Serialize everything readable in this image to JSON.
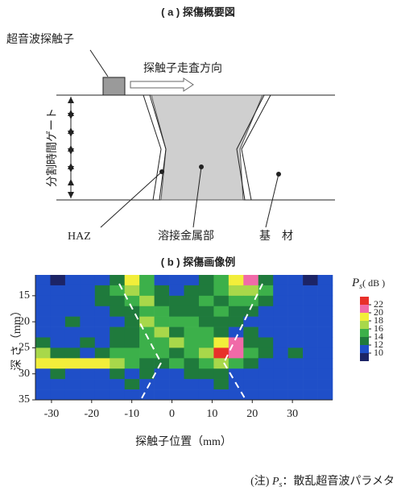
{
  "diagram": {
    "title": "( a )  探傷概要図",
    "probe_label": "超音波探触子",
    "scan_label": "探触子走査方向",
    "gate_label": "分割時間ゲート",
    "haz_label": "HAZ",
    "weld_label": "溶接金属部",
    "base_label": "基　材"
  },
  "chart_data": {
    "type": "heatmap",
    "title": "( b )  探傷画像例",
    "xlabel": "探触子位置（mm）",
    "ylabel": "深 さ（mm）",
    "colorbar_label": {
      "symbol": "P",
      "subscript": "s",
      "unit": "( dB )"
    },
    "x": [
      -32.15,
      -28.45,
      -24.75,
      -21.05,
      -17.35,
      -13.65,
      -9.95,
      -6.25,
      -2.55,
      1.15,
      4.85,
      8.55,
      12.25,
      15.95,
      19.65,
      23.35,
      27.05,
      30.75,
      34.45,
      38.15
    ],
    "y": [
      12,
      14,
      16,
      18,
      20,
      22,
      24,
      26,
      28,
      30,
      32,
      34
    ],
    "z": [
      [
        10,
        9,
        10,
        10,
        11,
        12,
        18,
        14,
        11,
        10,
        11,
        12,
        14,
        18,
        20,
        12,
        11,
        10,
        9,
        10
      ],
      [
        11,
        10,
        10,
        11,
        12,
        14,
        16,
        15,
        12,
        11,
        12,
        13,
        15,
        17,
        16,
        14,
        11,
        10,
        10,
        11
      ],
      [
        10,
        10,
        11,
        10,
        12,
        13,
        14,
        16,
        13,
        12,
        12,
        14,
        13,
        15,
        14,
        12,
        10,
        11,
        10,
        10
      ],
      [
        10,
        11,
        10,
        11,
        10,
        12,
        13,
        15,
        14,
        13,
        12,
        13,
        14,
        12,
        12,
        11,
        10,
        10,
        11,
        10
      ],
      [
        11,
        10,
        12,
        10,
        11,
        11,
        13,
        17,
        14,
        15,
        14,
        12,
        13,
        12,
        11,
        10,
        11,
        10,
        10,
        11
      ],
      [
        10,
        11,
        10,
        11,
        10,
        12,
        12,
        14,
        16,
        13,
        15,
        14,
        13,
        11,
        12,
        10,
        10,
        11,
        10,
        10
      ],
      [
        12,
        11,
        10,
        12,
        11,
        12,
        13,
        15,
        14,
        16,
        14,
        15,
        18,
        21,
        13,
        12,
        11,
        10,
        11,
        10
      ],
      [
        16,
        12,
        13,
        11,
        12,
        14,
        15,
        14,
        15,
        13,
        14,
        16,
        22,
        20,
        14,
        12,
        11,
        12,
        10,
        11
      ],
      [
        18,
        19,
        19,
        18,
        18,
        16,
        14,
        13,
        12,
        14,
        13,
        15,
        17,
        14,
        12,
        11,
        10,
        11,
        10,
        10
      ],
      [
        11,
        12,
        11,
        10,
        11,
        12,
        11,
        12,
        10,
        11,
        12,
        13,
        12,
        11,
        10,
        11,
        10,
        10,
        11,
        10
      ],
      [
        10,
        11,
        10,
        11,
        10,
        11,
        12,
        11,
        10,
        11,
        10,
        11,
        12,
        10,
        11,
        10,
        11,
        10,
        10,
        11
      ],
      [
        11,
        10,
        11,
        10,
        11,
        10,
        11,
        10,
        11,
        10,
        11,
        10,
        11,
        10,
        11,
        10,
        10,
        11,
        10,
        11
      ]
    ],
    "xlim": [
      -34,
      40
    ],
    "ylim": [
      11,
      35
    ],
    "xticks": [
      -30,
      -20,
      -10,
      0,
      10,
      20,
      30
    ],
    "yticks": [
      15,
      20,
      25,
      30,
      35
    ],
    "colorbar_ticks": [
      10,
      12,
      14,
      16,
      18,
      20,
      22
    ],
    "color_bounds": [
      8,
      10,
      12,
      14,
      16,
      18,
      20,
      22,
      24
    ],
    "colors": [
      "#1c2466",
      "#1f4fc8",
      "#1f7a3c",
      "#3cb04a",
      "#a8d84a",
      "#f2ee3a",
      "#f06aa8",
      "#e8302a"
    ]
  },
  "note": {
    "prefix": "(注) ",
    "symbol": "P",
    "subscript": "s",
    "text": "：散乱超音波パラメタ"
  }
}
